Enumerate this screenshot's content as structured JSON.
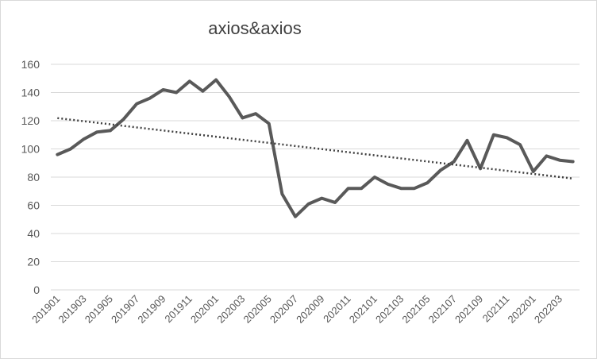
{
  "chart_data": {
    "type": "line",
    "title": "axios&axios",
    "xlabel": "",
    "ylabel": "",
    "ylim": [
      0,
      160
    ],
    "yticks": [
      0,
      20,
      40,
      60,
      80,
      100,
      120,
      140,
      160
    ],
    "grid": true,
    "legend": "none",
    "trendline": {
      "type": "linear",
      "style": "dotted",
      "color": "#404040"
    },
    "x": [
      "201901",
      "201902",
      "201903",
      "201904",
      "201905",
      "201906",
      "201907",
      "201908",
      "201909",
      "201910",
      "201911",
      "201912",
      "202001",
      "202002",
      "202003",
      "202004",
      "202005",
      "202006",
      "202007",
      "202008",
      "202009",
      "202010",
      "202011",
      "202012",
      "202101",
      "202102",
      "202103",
      "202104",
      "202105",
      "202106",
      "202107",
      "202108",
      "202109",
      "202110",
      "202111",
      "202112",
      "202201",
      "202202",
      "202203",
      "202204"
    ],
    "xtick_labels": [
      "201901",
      "201903",
      "201905",
      "201907",
      "201909",
      "201911",
      "202001",
      "202003",
      "202005",
      "202007",
      "202009",
      "202011",
      "202101",
      "202103",
      "202105",
      "202107",
      "202109",
      "202111",
      "202201",
      "202203"
    ],
    "series": [
      {
        "color": "#595959",
        "values": [
          96,
          100,
          107,
          112,
          113,
          121,
          132,
          136,
          142,
          140,
          148,
          141,
          149,
          137,
          122,
          125,
          118,
          68,
          52,
          61,
          65,
          62,
          72,
          72,
          80,
          75,
          72,
          72,
          76,
          85,
          91,
          106,
          86,
          110,
          108,
          103,
          84,
          95,
          92,
          91
        ]
      }
    ]
  }
}
